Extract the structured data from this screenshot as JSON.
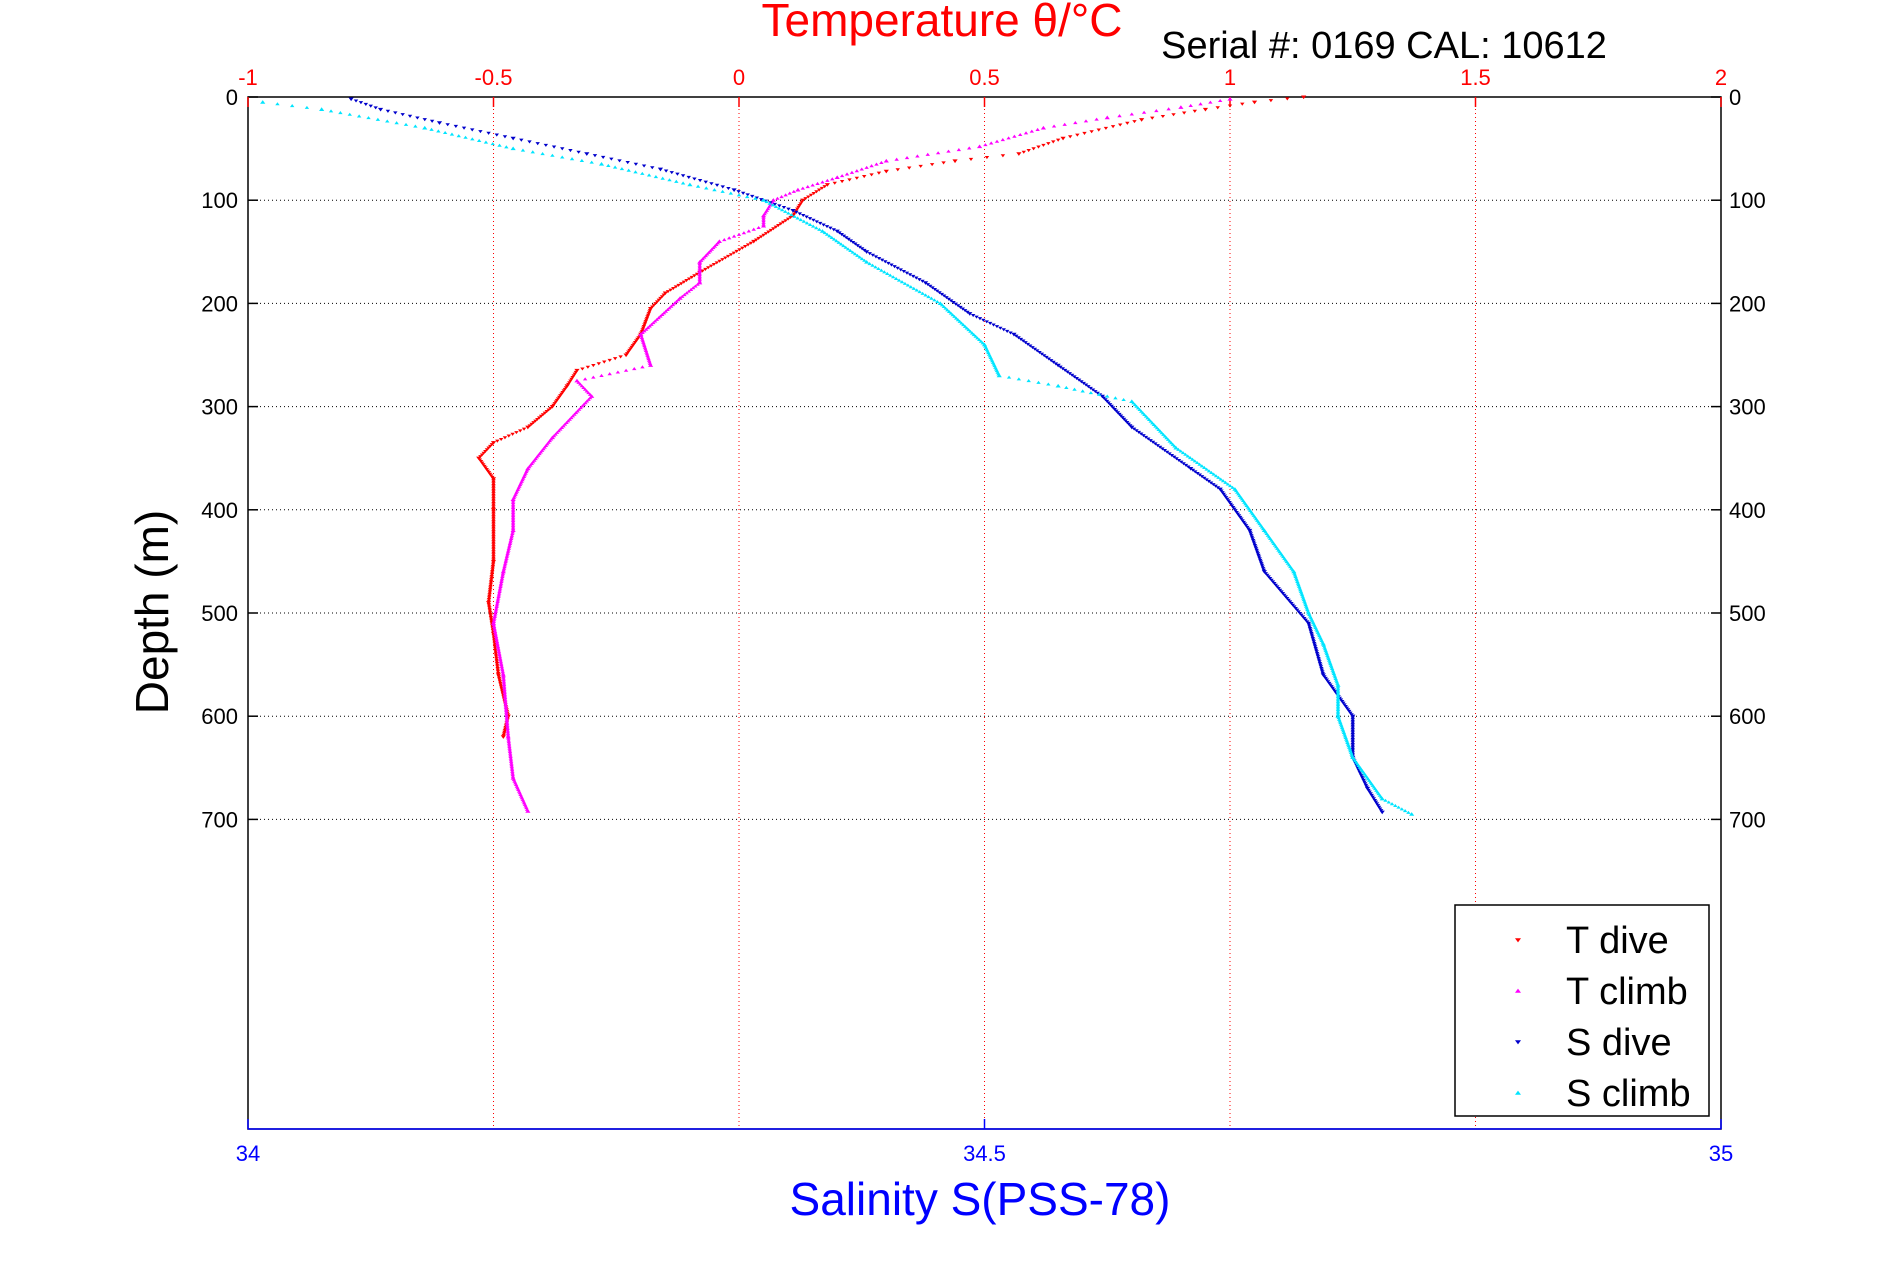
{
  "chart_data": {
    "type": "scatter",
    "title_top": "Temperature θ/°C",
    "serial_label": "Serial #: 0169 CAL: 10612",
    "ylabel": "Depth (m)",
    "xlabel_bottom": "Salinity S(PSS-78)",
    "y_axis": {
      "range": [
        0,
        1000
      ],
      "reversed": true,
      "ticks": [
        0,
        100,
        200,
        300,
        400,
        500,
        600,
        700
      ],
      "tick_labels": [
        "0",
        "100",
        "200",
        "300",
        "400",
        "500",
        "600",
        "700"
      ]
    },
    "temperature_axis": {
      "position": "top",
      "range": [
        -1,
        2
      ],
      "ticks": [
        -1,
        -0.5,
        0,
        0.5,
        1,
        1.5,
        2
      ],
      "tick_labels": [
        "-1",
        "-0.5",
        "0",
        "0.5",
        "1",
        "1.5",
        "2"
      ],
      "color": "#ff0000",
      "grid": true
    },
    "salinity_axis": {
      "position": "bottom",
      "range": [
        34,
        35
      ],
      "ticks": [
        34,
        34.5,
        35
      ],
      "tick_labels": [
        "34",
        "34.5",
        "35"
      ],
      "color": "#0000ff"
    },
    "grid": true,
    "legend": {
      "position": "bottom-right"
    },
    "series": [
      {
        "name": "T dive",
        "color": "#ff0000",
        "axis": "temperature",
        "marker": "triangle-down",
        "points": [
          [
            1.15,
            0
          ],
          [
            1.05,
            5
          ],
          [
            0.95,
            12
          ],
          [
            0.82,
            22
          ],
          [
            0.66,
            40
          ],
          [
            0.57,
            55
          ],
          [
            0.44,
            62
          ],
          [
            0.3,
            72
          ],
          [
            0.18,
            85
          ],
          [
            0.13,
            100
          ],
          [
            0.11,
            115
          ],
          [
            0.03,
            140
          ],
          [
            -0.08,
            170
          ],
          [
            -0.15,
            190
          ],
          [
            -0.18,
            205
          ],
          [
            -0.2,
            230
          ],
          [
            -0.23,
            250
          ],
          [
            -0.33,
            265
          ],
          [
            -0.35,
            280
          ],
          [
            -0.38,
            300
          ],
          [
            -0.43,
            320
          ],
          [
            -0.5,
            335
          ],
          [
            -0.53,
            350
          ],
          [
            -0.5,
            370
          ],
          [
            -0.5,
            400
          ],
          [
            -0.5,
            450
          ],
          [
            -0.51,
            490
          ],
          [
            -0.5,
            520
          ],
          [
            -0.49,
            560
          ],
          [
            -0.47,
            600
          ],
          [
            -0.48,
            620
          ]
        ]
      },
      {
        "name": "T climb",
        "color": "#ff00ff",
        "axis": "temperature",
        "marker": "triangle-up",
        "points": [
          [
            1.0,
            2
          ],
          [
            0.9,
            10
          ],
          [
            0.75,
            20
          ],
          [
            0.62,
            30
          ],
          [
            0.49,
            48
          ],
          [
            0.3,
            62
          ],
          [
            0.2,
            78
          ],
          [
            0.12,
            90
          ],
          [
            0.07,
            100
          ],
          [
            0.05,
            115
          ],
          [
            0.05,
            125
          ],
          [
            -0.04,
            140
          ],
          [
            -0.08,
            160
          ],
          [
            -0.08,
            180
          ],
          [
            -0.12,
            195
          ],
          [
            -0.2,
            230
          ],
          [
            -0.18,
            260
          ],
          [
            -0.33,
            275
          ],
          [
            -0.3,
            290
          ],
          [
            -0.38,
            330
          ],
          [
            -0.43,
            360
          ],
          [
            -0.46,
            390
          ],
          [
            -0.46,
            420
          ],
          [
            -0.48,
            460
          ],
          [
            -0.5,
            510
          ],
          [
            -0.48,
            560
          ],
          [
            -0.47,
            620
          ],
          [
            -0.46,
            660
          ],
          [
            -0.43,
            692
          ]
        ]
      },
      {
        "name": "S dive",
        "color": "#0000cc",
        "axis": "salinity",
        "marker": "triangle-down",
        "points": [
          [
            34.07,
            2
          ],
          [
            34.09,
            12
          ],
          [
            34.13,
            25
          ],
          [
            34.18,
            40
          ],
          [
            34.23,
            55
          ],
          [
            34.28,
            70
          ],
          [
            34.33,
            90
          ],
          [
            34.37,
            110
          ],
          [
            34.4,
            130
          ],
          [
            34.42,
            150
          ],
          [
            34.46,
            180
          ],
          [
            34.49,
            210
          ],
          [
            34.52,
            230
          ],
          [
            34.55,
            260
          ],
          [
            34.58,
            290
          ],
          [
            34.6,
            320
          ],
          [
            34.64,
            360
          ],
          [
            34.66,
            380
          ],
          [
            34.68,
            420
          ],
          [
            34.69,
            460
          ],
          [
            34.72,
            510
          ],
          [
            34.73,
            560
          ],
          [
            34.75,
            600
          ],
          [
            34.75,
            640
          ],
          [
            34.76,
            670
          ],
          [
            34.77,
            693
          ]
        ]
      },
      {
        "name": "S climb",
        "color": "#00e5ff",
        "axis": "salinity",
        "marker": "triangle-up",
        "points": [
          [
            34.01,
            5
          ],
          [
            34.05,
            12
          ],
          [
            34.12,
            30
          ],
          [
            34.18,
            50
          ],
          [
            34.24,
            65
          ],
          [
            34.3,
            85
          ],
          [
            34.35,
            100
          ],
          [
            34.39,
            130
          ],
          [
            34.42,
            160
          ],
          [
            34.47,
            200
          ],
          [
            34.5,
            240
          ],
          [
            34.51,
            270
          ],
          [
            34.55,
            280
          ],
          [
            34.6,
            295
          ],
          [
            34.63,
            340
          ],
          [
            34.67,
            380
          ],
          [
            34.69,
            420
          ],
          [
            34.71,
            460
          ],
          [
            34.72,
            500
          ],
          [
            34.73,
            530
          ],
          [
            34.74,
            570
          ],
          [
            34.74,
            600
          ],
          [
            34.75,
            640
          ],
          [
            34.77,
            680
          ],
          [
            34.79,
            695
          ]
        ]
      }
    ]
  }
}
